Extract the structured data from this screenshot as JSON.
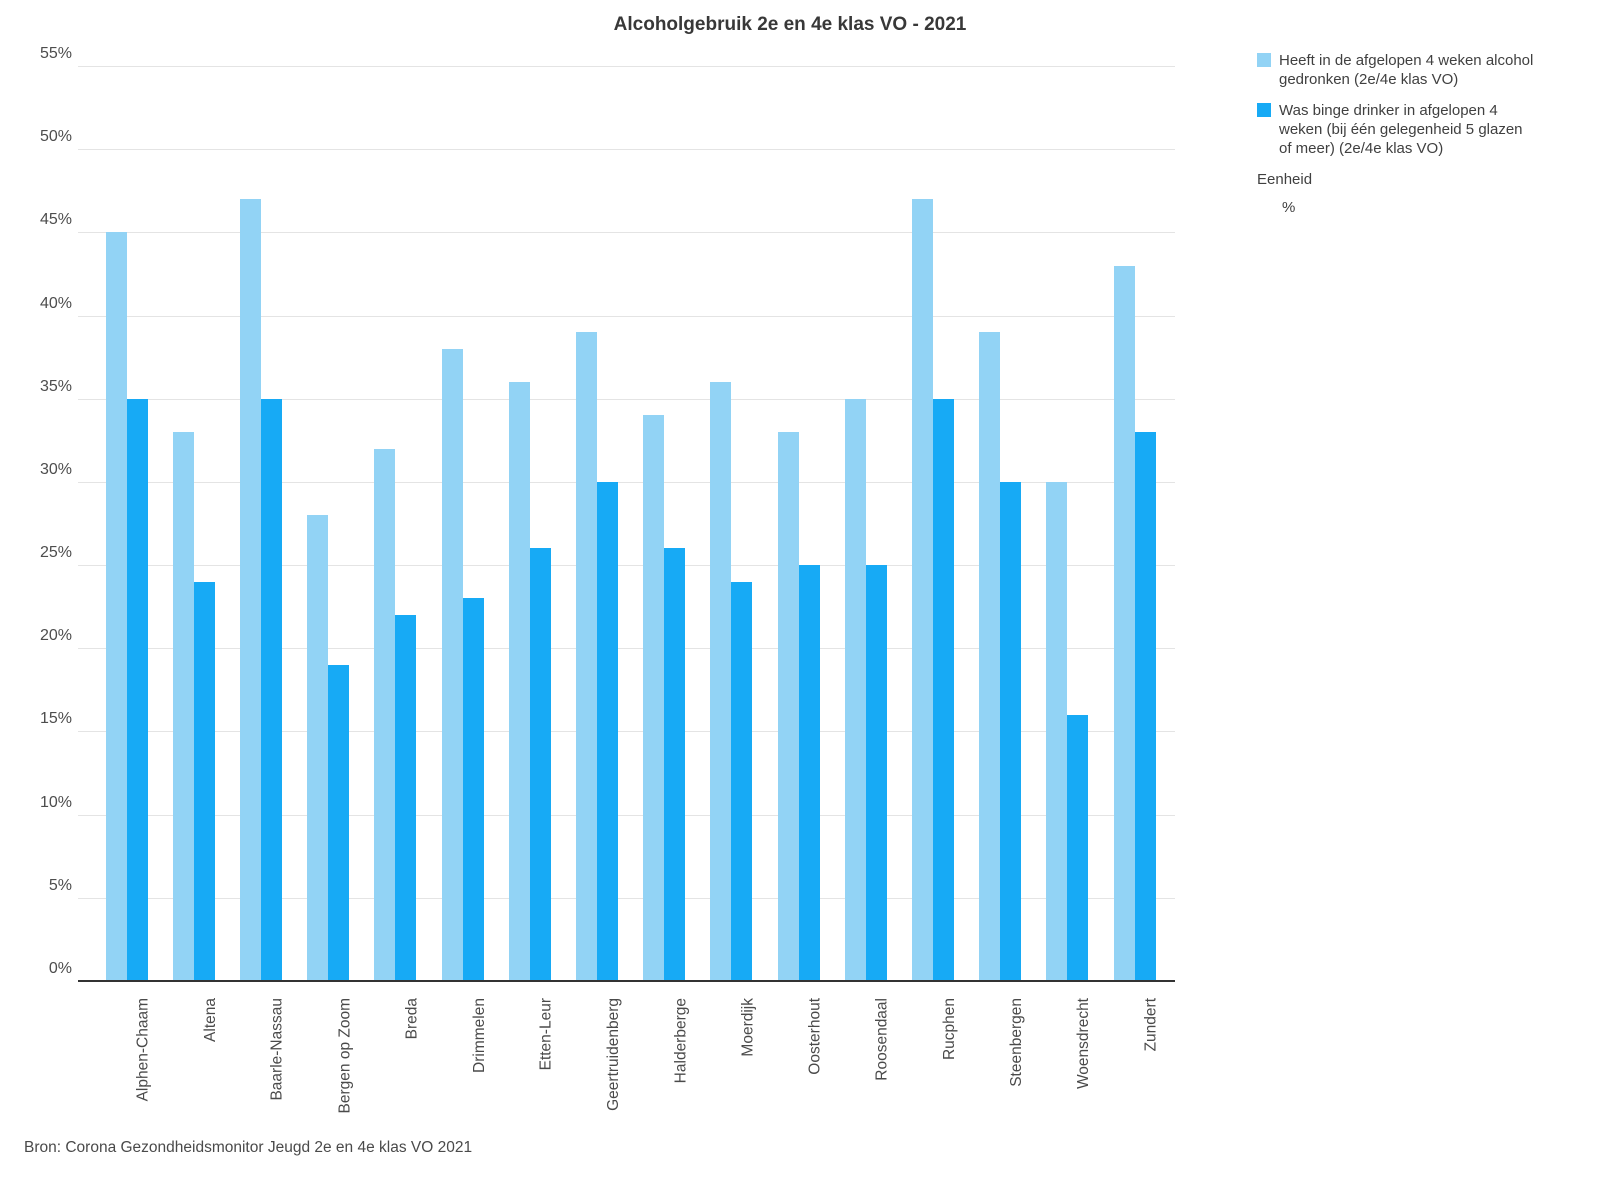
{
  "title": "Alcoholgebruik 2e en 4e klas VO - 2021",
  "source": "Bron: Corona Gezondheidsmonitor Jeugd 2e en 4e klas VO 2021",
  "legend": {
    "items": [
      {
        "label": "Heeft in de afgelopen 4 weken alcohol gedronken (2e/4e klas VO)",
        "color": "#92d3f5"
      },
      {
        "label": "Was binge drinker in afgelopen 4 weken (bij één gelegenheid 5 glazen of meer) (2e/4e klas VO)",
        "color": "#17aaf5"
      }
    ],
    "unit_label": "Eenheid",
    "unit_value": "%"
  },
  "chart_data": {
    "type": "bar",
    "title": "Alcoholgebruik 2e en 4e klas VO - 2021",
    "categories": [
      "Alphen-Chaam",
      "Altena",
      "Baarle-Nassau",
      "Bergen op Zoom",
      "Breda",
      "Drimmelen",
      "Etten-Leur",
      "Geertruidenberg",
      "Halderberge",
      "Moerdijk",
      "Oosterhout",
      "Roosendaal",
      "Rucphen",
      "Steenbergen",
      "Woensdrecht",
      "Zundert"
    ],
    "series": [
      {
        "name": "Heeft in de afgelopen 4 weken alcohol gedronken (2e/4e klas VO)",
        "color": "#92d3f5",
        "values": [
          45,
          33,
          47,
          28,
          32,
          38,
          36,
          39,
          34,
          36,
          33,
          35,
          47,
          39,
          30,
          43
        ]
      },
      {
        "name": "Was binge drinker in afgelopen 4 weken (bij één gelegenheid 5 glazen of meer) (2e/4e klas VO)",
        "color": "#17aaf5",
        "values": [
          35,
          24,
          35,
          19,
          22,
          23,
          26,
          30,
          26,
          24,
          25,
          25,
          35,
          30,
          16,
          33
        ]
      }
    ],
    "unit": "%",
    "xlabel": "",
    "ylabel": "",
    "ylim": [
      0,
      55
    ],
    "ytick_step": 5,
    "grid": true,
    "legend_position": "right",
    "gridline_color": "#e4e4e4",
    "axis_color": "#333333"
  }
}
